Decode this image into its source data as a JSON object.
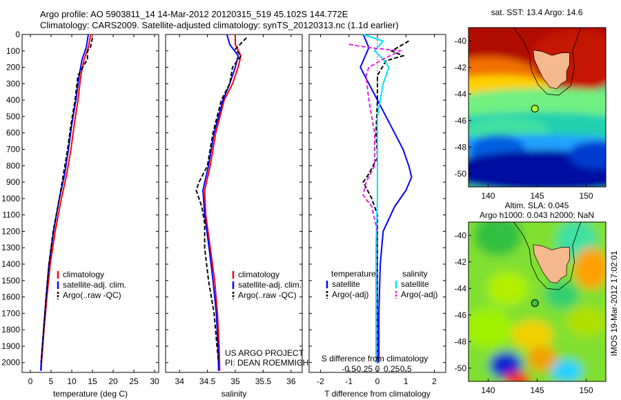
{
  "header": {
    "line1": "Argo profile: AO 5903811_14 14-Mar-2012 20120315_519 45.102S 144.772E",
    "line2": "Climatology: CARS2009. Satellite-adjusted climatology: synTS_20120313.nc (1.1d earlier)"
  },
  "side_label": "IMOS 19-Mar-2012 17:02:01",
  "colors": {
    "climatology": "#ff0000",
    "satellite": "#0000ff",
    "argo": "#000000",
    "satellite_salinity": "#00e0ff",
    "argo_salinity": "#e020e0",
    "land": "#f6b98e"
  },
  "chart_data": [
    {
      "type": "line",
      "name": "temperature-profile",
      "xlabel": "temperature (deg C)",
      "ylabel": "",
      "xlim": [
        -2,
        31
      ],
      "ylim": [
        2060,
        0
      ],
      "xticks": [
        0,
        5,
        10,
        15,
        20,
        25,
        30
      ],
      "xtick_labels": [
        "0",
        "5",
        "10",
        "15",
        "20",
        "25",
        "30"
      ],
      "yticks": [
        0,
        100,
        200,
        300,
        400,
        500,
        600,
        700,
        800,
        900,
        1000,
        1100,
        1200,
        1300,
        1400,
        1500,
        1600,
        1700,
        1800,
        1900,
        2000
      ],
      "ytick_labels": [
        "0",
        "100",
        "200",
        "300",
        "400",
        "500",
        "600",
        "700",
        "800",
        "900",
        "1000",
        "1100",
        "1200",
        "1300",
        "1400",
        "1500",
        "1600",
        "1700",
        "1800",
        "1900",
        "2000"
      ],
      "legend": [
        "climatology",
        "satellite-adj. clim.",
        "Argo(..raw -QC)"
      ],
      "series": [
        {
          "name": "climatology",
          "color": "#ff0000",
          "dash": "",
          "points": [
            [
              14.6,
              0
            ],
            [
              14.0,
              80
            ],
            [
              13.0,
              150
            ],
            [
              12.2,
              250
            ],
            [
              11.5,
              400
            ],
            [
              10.6,
              550
            ],
            [
              9.8,
              700
            ],
            [
              8.8,
              850
            ],
            [
              7.5,
              1000
            ],
            [
              6.0,
              1200
            ],
            [
              4.8,
              1400
            ],
            [
              4.0,
              1600
            ],
            [
              3.3,
              1800
            ],
            [
              2.7,
              2000
            ],
            [
              2.6,
              2050
            ]
          ]
        },
        {
          "name": "satellite-adj. clim.",
          "color": "#0000ff",
          "dash": "",
          "points": [
            [
              14.0,
              0
            ],
            [
              13.5,
              80
            ],
            [
              12.5,
              150
            ],
            [
              11.8,
              250
            ],
            [
              11.0,
              400
            ],
            [
              10.0,
              550
            ],
            [
              9.2,
              700
            ],
            [
              8.3,
              850
            ],
            [
              7.0,
              1000
            ],
            [
              5.6,
              1200
            ],
            [
              4.5,
              1400
            ],
            [
              3.8,
              1600
            ],
            [
              3.2,
              1800
            ],
            [
              2.6,
              2000
            ],
            [
              2.5,
              2050
            ]
          ]
        },
        {
          "name": "Argo(..raw -QC)",
          "color": "#000000",
          "dash": "6,3",
          "points": [
            [
              15.0,
              20
            ],
            [
              14.5,
              80
            ],
            [
              13.8,
              100
            ],
            [
              13.8,
              150
            ],
            [
              11.5,
              250
            ],
            [
              10.8,
              400
            ],
            [
              9.8,
              550
            ],
            [
              9.0,
              700
            ],
            [
              8.0,
              850
            ],
            [
              7.0,
              1000
            ],
            [
              5.5,
              1200
            ],
            [
              4.5,
              1400
            ],
            [
              3.8,
              1600
            ],
            [
              3.2,
              1800
            ],
            [
              2.6,
              2000
            ]
          ]
        }
      ]
    },
    {
      "type": "line",
      "name": "salinity-profile",
      "xlabel": "salinity",
      "xlim": [
        33.75,
        36.2
      ],
      "ylim": [
        2060,
        0
      ],
      "xticks": [
        34,
        34.5,
        35,
        35.5,
        36
      ],
      "xtick_labels": [
        "34",
        "34.5",
        "35",
        "35.5",
        "36"
      ],
      "legend": [
        "climatology",
        "satellite-adj. clim.",
        "Argo(..raw -QC)"
      ],
      "annotations": [
        "US ARGO PROJECT",
        "PI: DEAN ROEMMICH"
      ],
      "series": [
        {
          "name": "climatology",
          "color": "#ff0000",
          "dash": "",
          "points": [
            [
              35.0,
              0
            ],
            [
              35.0,
              60
            ],
            [
              35.1,
              130
            ],
            [
              35.05,
              200
            ],
            [
              34.95,
              300
            ],
            [
              34.8,
              400
            ],
            [
              34.65,
              600
            ],
            [
              34.55,
              800
            ],
            [
              34.45,
              950
            ],
            [
              34.47,
              1100
            ],
            [
              34.55,
              1300
            ],
            [
              34.63,
              1500
            ],
            [
              34.68,
              1700
            ],
            [
              34.71,
              1900
            ],
            [
              34.72,
              2050
            ]
          ]
        },
        {
          "name": "satellite-adj. clim.",
          "color": "#0000ff",
          "dash": "",
          "points": [
            [
              34.85,
              0
            ],
            [
              34.9,
              60
            ],
            [
              35.05,
              130
            ],
            [
              35.0,
              200
            ],
            [
              34.9,
              300
            ],
            [
              34.78,
              400
            ],
            [
              34.62,
              600
            ],
            [
              34.52,
              800
            ],
            [
              34.42,
              950
            ],
            [
              34.45,
              1100
            ],
            [
              34.53,
              1300
            ],
            [
              34.6,
              1500
            ],
            [
              34.66,
              1700
            ],
            [
              34.69,
              1900
            ],
            [
              34.7,
              2050
            ]
          ]
        },
        {
          "name": "Argo(..raw -QC)",
          "color": "#000000",
          "dash": "6,3",
          "points": [
            [
              35.2,
              20
            ],
            [
              35.0,
              90
            ],
            [
              35.1,
              130
            ],
            [
              34.95,
              200
            ],
            [
              34.9,
              300
            ],
            [
              34.75,
              400
            ],
            [
              34.6,
              600
            ],
            [
              34.5,
              800
            ],
            [
              34.35,
              900
            ],
            [
              34.3,
              950
            ],
            [
              34.4,
              1050
            ],
            [
              34.45,
              1150
            ],
            [
              34.45,
              1300
            ],
            [
              34.52,
              1500
            ],
            [
              34.62,
              1700
            ],
            [
              34.67,
              1900
            ],
            [
              34.7,
              2000
            ]
          ]
        }
      ]
    },
    {
      "type": "line",
      "name": "difference-profile",
      "xlabel": "T difference from climatology",
      "xlabel_top": "S difference from climatology",
      "xlim": [
        -2.4,
        2.4
      ],
      "ylim": [
        2060,
        0
      ],
      "xticks": [
        -2,
        -1,
        0,
        1,
        2
      ],
      "xtick_labels": [
        "-2",
        "-1",
        "0",
        "1",
        "2"
      ],
      "s_ticks": [
        -0.5,
        -0.25,
        0,
        0.25,
        0.5
      ],
      "s_tick_labels": [
        "-0.5",
        "-0.25",
        "0",
        "0.25",
        "0.5"
      ],
      "legend_headers": [
        "temperature",
        "salinity"
      ],
      "legend": [
        "satellite",
        "Argo(-adj)",
        "satellite",
        "Argo(-adj)"
      ],
      "series": [
        {
          "name": "satellite",
          "color": "#0000ff",
          "dash": "",
          "points": [
            [
              -0.5,
              0
            ],
            [
              -0.3,
              80
            ],
            [
              -0.6,
              200
            ],
            [
              -0.3,
              300
            ],
            [
              0,
              400
            ],
            [
              0.3,
              500
            ],
            [
              0.6,
              600
            ],
            [
              0.9,
              700
            ],
            [
              1.1,
              800
            ],
            [
              1.2,
              870
            ],
            [
              1.0,
              950
            ],
            [
              0.6,
              1050
            ],
            [
              0.2,
              1200
            ],
            [
              0.1,
              1400
            ],
            [
              0.05,
              1700
            ],
            [
              0.05,
              2000
            ]
          ]
        },
        {
          "name": "Argo(-adj)",
          "color": "#000000",
          "dash": "6,3",
          "points": [
            [
              1.1,
              40
            ],
            [
              0.5,
              100
            ],
            [
              0.9,
              130
            ],
            [
              0.3,
              160
            ],
            [
              0,
              250
            ],
            [
              0,
              400
            ],
            [
              -0.05,
              600
            ],
            [
              0,
              750
            ],
            [
              -0.3,
              850
            ],
            [
              -0.5,
              900
            ],
            [
              -0.2,
              1000
            ],
            [
              0,
              1100
            ],
            [
              0,
              1400
            ],
            [
              0,
              2000
            ]
          ]
        },
        {
          "name": "satellite",
          "color": "#00e0ff",
          "dash": "",
          "points": [
            [
              -0.5,
              0
            ],
            [
              0.2,
              40
            ],
            [
              -0.1,
              100
            ],
            [
              0.2,
              150
            ],
            [
              0.4,
              200
            ],
            [
              0.2,
              300
            ],
            [
              0,
              500
            ],
            [
              0,
              1000
            ],
            [
              -0.05,
              1300
            ],
            [
              -0.05,
              2000
            ]
          ]
        },
        {
          "name": "Argo(-adj)",
          "color": "#e020e0",
          "dash": "6,3",
          "points": [
            [
              -1.0,
              60
            ],
            [
              -0.3,
              80
            ],
            [
              0.8,
              100
            ],
            [
              0.2,
              150
            ],
            [
              -0.3,
              200
            ],
            [
              -0.4,
              250
            ],
            [
              -0.3,
              400
            ],
            [
              -0.1,
              600
            ],
            [
              -0.1,
              800
            ],
            [
              -0.4,
              900
            ],
            [
              -0.5,
              980
            ],
            [
              -0.2,
              1050
            ],
            [
              0,
              1200
            ],
            [
              0,
              2000
            ]
          ]
        }
      ]
    },
    {
      "type": "heatmap",
      "name": "sst-map",
      "title": "sat. SST: 13.4 Argo: 14.6",
      "xlim": [
        138,
        152
      ],
      "ylim": [
        -51,
        -39
      ],
      "xticks": [
        140,
        145,
        150
      ],
      "xtick_labels": [
        "140",
        "145",
        "150"
      ],
      "yticks": [
        -40,
        -42,
        -44,
        -46,
        -48,
        -50
      ],
      "ytick_labels": [
        "-40",
        "-42",
        "-44",
        "-46",
        "-48",
        "-50"
      ],
      "argo_position": [
        144.772,
        -45.102
      ]
    },
    {
      "type": "heatmap",
      "name": "sla-map",
      "title": "Altim. SLA: 0.045",
      "subtitle": "Argo h1000: 0.043 h2000: NaN",
      "xlim": [
        138,
        152
      ],
      "ylim": [
        -51,
        -39
      ],
      "xticks": [
        140,
        145,
        150
      ],
      "xtick_labels": [
        "140",
        "145",
        "150"
      ],
      "yticks": [
        -40,
        -42,
        -44,
        -46,
        -48,
        -50
      ],
      "ytick_labels": [
        "-40",
        "-42",
        "-44",
        "-46",
        "-48",
        "-50"
      ],
      "argo_position": [
        144.772,
        -45.102
      ]
    }
  ]
}
